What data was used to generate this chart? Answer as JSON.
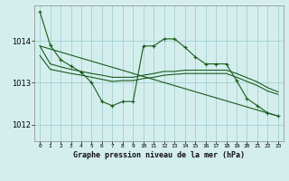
{
  "title": "Graphe pression niveau de la mer (hPa)",
  "background_color": "#d4eeee",
  "grid_color": "#aad4d4",
  "line_color": "#1a5c1a",
  "x_labels": [
    "0",
    "1",
    "2",
    "3",
    "4",
    "5",
    "6",
    "7",
    "8",
    "9",
    "10",
    "11",
    "12",
    "13",
    "14",
    "15",
    "16",
    "17",
    "18",
    "19",
    "20",
    "21",
    "22",
    "23"
  ],
  "yticks": [
    1012,
    1013,
    1014
  ],
  "ylim": [
    1011.6,
    1014.85
  ],
  "xlim": [
    -0.5,
    23.5
  ],
  "series1_x": [
    0,
    1,
    2,
    3,
    4,
    5,
    6,
    7,
    8,
    9,
    10,
    11,
    12,
    13,
    14,
    15,
    16,
    17,
    18,
    19,
    20,
    21,
    22,
    23
  ],
  "series1_y": [
    1014.7,
    1013.9,
    1013.55,
    1013.4,
    1013.25,
    1013.0,
    1012.55,
    1012.45,
    1012.55,
    1012.55,
    1013.88,
    1013.88,
    1014.05,
    1014.05,
    1013.85,
    1013.62,
    1013.45,
    1013.45,
    1013.45,
    1013.05,
    1012.62,
    1012.45,
    1012.28,
    1012.2
  ],
  "series2_x": [
    0,
    1,
    2,
    3,
    4,
    5,
    6,
    7,
    8,
    9,
    10,
    11,
    12,
    13,
    14,
    15,
    16,
    17,
    18,
    19,
    20,
    21,
    22,
    23
  ],
  "series2_y": [
    1013.88,
    1013.45,
    1013.38,
    1013.32,
    1013.27,
    1013.22,
    1013.18,
    1013.13,
    1013.13,
    1013.13,
    1013.18,
    1013.22,
    1013.27,
    1013.27,
    1013.3,
    1013.3,
    1013.3,
    1013.3,
    1013.3,
    1013.22,
    1013.12,
    1013.02,
    1012.88,
    1012.78
  ],
  "series3_x": [
    0,
    1,
    2,
    3,
    4,
    5,
    6,
    7,
    8,
    9,
    10,
    11,
    12,
    13,
    14,
    15,
    16,
    17,
    18,
    19,
    20,
    21,
    22,
    23
  ],
  "series3_y": [
    1013.65,
    1013.32,
    1013.27,
    1013.22,
    1013.18,
    1013.13,
    1013.08,
    1013.03,
    1013.05,
    1013.05,
    1013.1,
    1013.13,
    1013.18,
    1013.2,
    1013.22,
    1013.22,
    1013.22,
    1013.22,
    1013.22,
    1013.13,
    1013.03,
    1012.93,
    1012.8,
    1012.72
  ],
  "series4_x": [
    0,
    23
  ],
  "series4_y": [
    1013.88,
    1012.2
  ]
}
